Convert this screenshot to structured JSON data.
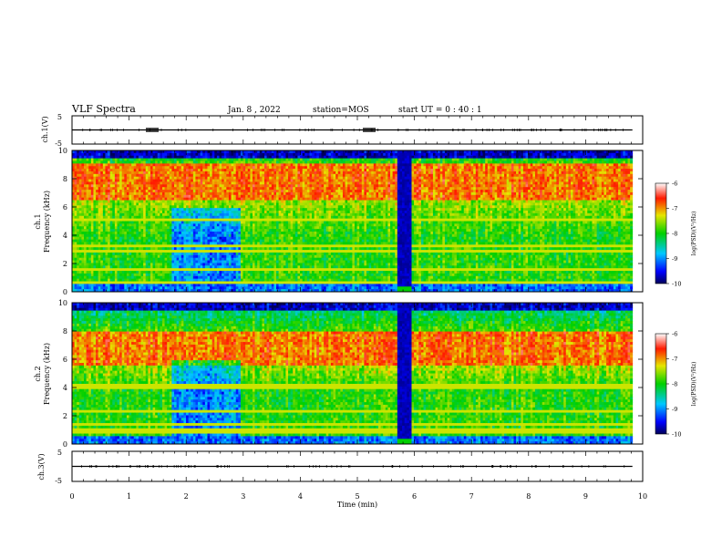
{
  "header": {
    "title": "VLF Spectra",
    "date": "Jan. 8 , 2022",
    "station": "station=MOS",
    "start_ut": "start UT = 0 : 40 : 1"
  },
  "chart_data": [
    {
      "type": "line",
      "title": "",
      "ylabel": "ch.1(V)",
      "xlabel": "",
      "xlim": [
        0,
        10
      ],
      "ylim": [
        -5,
        5
      ],
      "yticks": [
        "5",
        "-5"
      ],
      "series": [
        {
          "x": [
            0,
            9.82
          ],
          "y": [
            0,
            0
          ]
        }
      ],
      "bursts": [
        {
          "x": 1.4
        },
        {
          "x": 5.2
        }
      ]
    },
    {
      "type": "heatmap",
      "ylabel": "ch.1",
      "ylabel2": "Frequency (kHz)",
      "xlim": [
        0,
        10
      ],
      "ylim": [
        0,
        10
      ],
      "yticks": [
        "0",
        "2",
        "4",
        "6",
        "8",
        "10"
      ],
      "colorbar": {
        "label": "log(PSD)(V²/Hz)",
        "range": [
          -10,
          -6
        ],
        "ticks": [
          "-6",
          "-7",
          "-8",
          "-9",
          "-10"
        ]
      },
      "quiet_intervals": [
        [
          1.75,
          2.95
        ],
        [
          5.7,
          5.95
        ]
      ],
      "bright_band_khz": [
        6.5,
        9.0
      ],
      "data_end_min": 9.82
    },
    {
      "type": "heatmap",
      "ylabel": "ch.2",
      "ylabel2": "Frequency (kHz)",
      "xlim": [
        0,
        10
      ],
      "ylim": [
        0,
        10
      ],
      "yticks": [
        "0",
        "2",
        "4",
        "6",
        "8",
        "10"
      ],
      "colorbar": {
        "label": "log(PSD)(V²/Hz)",
        "range": [
          -10,
          -6
        ],
        "ticks": [
          "-6",
          "-7",
          "-8",
          "-9",
          "-10"
        ]
      },
      "quiet_intervals": [
        [
          1.75,
          2.95
        ],
        [
          5.7,
          5.95
        ]
      ],
      "bright_band_khz": [
        5.5,
        8.0
      ],
      "data_end_min": 9.82
    },
    {
      "type": "line",
      "title": "",
      "ylabel": "ch.3(V)",
      "xlabel": "Time (min)",
      "xlim": [
        0,
        10
      ],
      "ylim": [
        -5,
        5
      ],
      "yticks": [
        "5",
        "-5"
      ],
      "xticks": [
        "0",
        "1",
        "2",
        "3",
        "4",
        "5",
        "6",
        "7",
        "8",
        "9",
        "10"
      ],
      "series": [
        {
          "x": [
            0,
            9.82
          ],
          "y": [
            0,
            0
          ]
        }
      ]
    }
  ],
  "colors": {
    "low": "#00005a",
    "mid": "#00c000",
    "high": "#ff0000"
  }
}
